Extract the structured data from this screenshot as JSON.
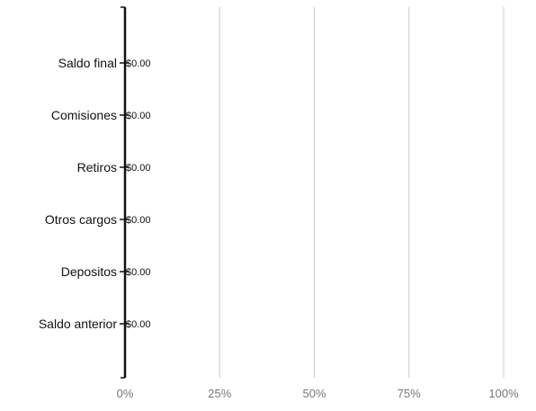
{
  "chart_data": {
    "type": "bar",
    "orientation": "horizontal",
    "stacking": "percent",
    "categories": [
      "Saldo anterior",
      "Depositos",
      "Otros cargos",
      "Retiros",
      "Comisiones",
      "Saldo final"
    ],
    "values": [
      0,
      0,
      0,
      0,
      0,
      0
    ],
    "data_labels": [
      "$0.00",
      "$0.00",
      "$0.00",
      "$0.00",
      "$0.00",
      "$0.00"
    ],
    "x_ticks": [
      "0%",
      "25%",
      "50%",
      "75%",
      "100%"
    ],
    "xlim": [
      0,
      1
    ],
    "title": "",
    "xlabel": "",
    "ylabel": "",
    "grid": "vertical",
    "legend": "none",
    "colors": {
      "axis": "#111111",
      "grid": "#c8c8c8",
      "tick_label": "#777777",
      "text": "#111111"
    }
  }
}
